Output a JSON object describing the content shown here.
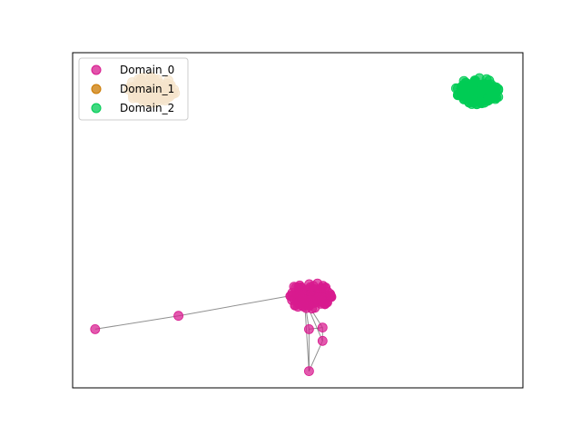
{
  "chart_data": {
    "type": "scatter",
    "title": "",
    "xlabel": "",
    "ylabel": "",
    "axes_ticks": "none",
    "xlim": [
      -1.0,
      1.0
    ],
    "ylim": [
      -1.0,
      1.0
    ],
    "grid": false,
    "legend": {
      "placement": "top-left",
      "entries": [
        {
          "name": "Domain_0",
          "color": "#d81b8f"
        },
        {
          "name": "Domain_1",
          "color": "#cc7a00"
        },
        {
          "name": "Domain_2",
          "color": "#00cc55"
        }
      ]
    },
    "series": [
      {
        "name": "Domain_0",
        "color": "#d81b8f",
        "cluster": {
          "center": [
            0.05,
            -0.45
          ],
          "radius": [
            0.1,
            0.08
          ],
          "count": 90
        },
        "points": [
          {
            "id": "a",
            "x": -0.9,
            "y": -0.65
          },
          {
            "id": "b",
            "x": -0.53,
            "y": -0.57
          },
          {
            "id": "c",
            "x": -0.03,
            "y": -0.45
          },
          {
            "id": "d",
            "x": 0.05,
            "y": -0.65
          },
          {
            "id": "e",
            "x": 0.11,
            "y": -0.64
          },
          {
            "id": "f",
            "x": 0.11,
            "y": -0.72
          },
          {
            "id": "g",
            "x": 0.05,
            "y": -0.9
          }
        ],
        "edges": [
          [
            "a",
            "b"
          ],
          [
            "b",
            "c"
          ],
          [
            "d",
            "cluster"
          ],
          [
            "e",
            "cluster"
          ],
          [
            "f",
            "cluster"
          ],
          [
            "g",
            "cluster"
          ],
          [
            "d",
            "e"
          ],
          [
            "d",
            "g"
          ],
          [
            "e",
            "f"
          ],
          [
            "f",
            "g"
          ]
        ]
      },
      {
        "name": "Domain_1",
        "color": "#cc7a00",
        "cluster": {
          "center": [
            -0.65,
            0.78
          ],
          "radius": [
            0.11,
            0.08
          ],
          "count": 100
        }
      },
      {
        "name": "Domain_2",
        "color": "#00cc55",
        "cluster": {
          "center": [
            0.8,
            0.77
          ],
          "radius": [
            0.1,
            0.08
          ],
          "count": 110
        }
      }
    ]
  }
}
